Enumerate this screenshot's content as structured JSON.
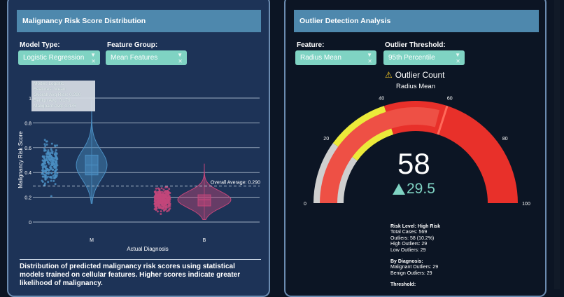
{
  "left_panel": {
    "title": "Malignancy Risk Score Distribution",
    "controls": [
      {
        "label": "Model Type:",
        "value": "Logistic Regression"
      },
      {
        "label": "Feature Group:",
        "value": "Mean Features"
      }
    ],
    "tooltip": [
      "Model: Logistic",
      "Features: Mean",
      "Overall Avg Risk: 0.290",
      "Benign Avg: 0.179",
      "Malignant Avg: 0.476"
    ],
    "description": "Distribution of predicted malignancy risk scores using statistical models trained on cellular features. Higher scores indicate greater likelihood of malignancy."
  },
  "chart_data": {
    "type": "violin",
    "categories": [
      "M",
      "B"
    ],
    "xlabel": "Actual Diagnosis",
    "ylabel": "Malignancy Risk Score",
    "ylim": [
      0,
      1
    ],
    "yticks": [
      0,
      0.2,
      0.4,
      0.6,
      0.8,
      1
    ],
    "ytick_labels": [
      "0",
      "0.2",
      "0.4",
      "0.6",
      "0.8",
      "1"
    ],
    "reference_line": {
      "value": 0.29,
      "label": "Overall Average: 0.290"
    },
    "series": [
      {
        "category": "M",
        "mean": 0.476,
        "median": 0.46,
        "q1": 0.38,
        "q3": 0.54,
        "min": 0.15,
        "max": 0.98,
        "color": "#4a8ec2"
      },
      {
        "category": "B",
        "mean": 0.179,
        "median": 0.18,
        "q1": 0.13,
        "q3": 0.22,
        "min": 0.02,
        "max": 0.47,
        "color": "#c2467a"
      }
    ]
  },
  "right_panel": {
    "title": "Outlier Detection Analysis",
    "controls": [
      {
        "label": "Feature:",
        "value": "Radius Mean"
      },
      {
        "label": "Outlier Threshold:",
        "value": "95th Percentile"
      }
    ],
    "gauge": {
      "title": "Outlier Count",
      "subtitle": "Radius Mean",
      "value": "58",
      "delta": "29.5",
      "value_num": 58,
      "min": 0,
      "max": 100,
      "ticks": [
        "0",
        "20",
        "40",
        "60",
        "80",
        "100"
      ],
      "colors": {
        "bar": "#ee5045",
        "threshold_band": "#e8302a",
        "warning_band": "#ecea3a",
        "base_band": "#cfcfcf"
      }
    },
    "stats": {
      "risk_level": "Risk Level: High Risk",
      "lines": [
        "Total Cases: 569",
        "Outliers: 58 (10.2%)",
        "High Outliers: 29",
        "Low Outliers: 29"
      ],
      "diagnosis_header": "By Diagnosis:",
      "diagnosis_lines": [
        "Malignant Outliers: 29",
        "Benign Outliers: 29"
      ],
      "threshold_header": "Threshold:"
    }
  }
}
